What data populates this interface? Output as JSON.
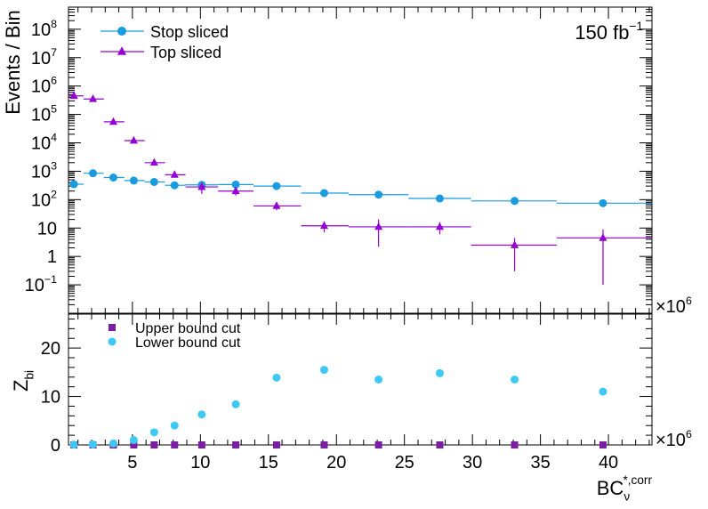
{
  "chart_data": [
    {
      "type": "scatter",
      "ylabel": "Events / Bin",
      "yscale": "log",
      "ylim": [
        0.01,
        600000000
      ],
      "xlim": [
        0.3,
        43.2
      ],
      "x_multiplier": "×10^6",
      "annotation": {
        "text": "150 fb",
        "sup": "−1"
      },
      "legend": "top-left",
      "y_ticks": [
        {
          "value": 0.1,
          "label": "10",
          "sup": "−1"
        },
        {
          "value": 1,
          "label": "1",
          "sup": ""
        },
        {
          "value": 10,
          "label": "10",
          "sup": ""
        },
        {
          "value": 100,
          "label": "10",
          "sup": "2"
        },
        {
          "value": 1000,
          "label": "10",
          "sup": "3"
        },
        {
          "value": 10000,
          "label": "10",
          "sup": "4"
        },
        {
          "value": 100000,
          "label": "10",
          "sup": "5"
        },
        {
          "value": 1000000,
          "label": "10",
          "sup": "6"
        },
        {
          "value": 10000000,
          "label": "10",
          "sup": "7"
        },
        {
          "value": 100000000,
          "label": "10",
          "sup": "8"
        }
      ],
      "series": [
        {
          "name": "Stop sliced",
          "color": "#1a9be0",
          "marker": "circle",
          "x": [
            0.7,
            2.1,
            3.6,
            5.1,
            6.6,
            8.1,
            10.1,
            12.6,
            15.6,
            19.1,
            23.1,
            27.6,
            33.1,
            39.6
          ],
          "xlo": [
            0.3,
            1.4,
            2.9,
            4.4,
            5.9,
            7.4,
            8.9,
            11.3,
            13.9,
            17.4,
            20.9,
            25.3,
            29.9,
            36.2
          ],
          "xhi": [
            1.4,
            2.9,
            4.4,
            5.9,
            7.4,
            8.9,
            11.3,
            13.9,
            17.4,
            20.9,
            25.3,
            29.9,
            36.2,
            43.2
          ],
          "y": [
            350,
            850,
            600,
            470,
            420,
            320,
            330,
            340,
            300,
            170,
            150,
            110,
            90,
            75
          ]
        },
        {
          "name": "Top sliced",
          "color": "#9400d3",
          "marker": "triangle",
          "x": [
            0.7,
            2.1,
            3.6,
            5.1,
            6.6,
            8.1,
            10.1,
            12.6,
            15.6,
            19.1,
            23.1,
            27.6,
            33.1,
            39.6
          ],
          "xlo": [
            0.3,
            1.4,
            2.9,
            4.4,
            5.9,
            7.4,
            8.9,
            11.3,
            13.9,
            17.4,
            20.9,
            25.3,
            29.9,
            36.2
          ],
          "xhi": [
            1.4,
            2.9,
            4.4,
            5.9,
            7.4,
            8.9,
            11.3,
            13.9,
            17.4,
            20.9,
            25.3,
            29.9,
            36.2,
            43.2
          ],
          "y": [
            450000,
            350000,
            55000,
            12000,
            2000,
            750,
            280,
            200,
            60,
            12,
            11,
            11,
            2.5,
            4.5
          ],
          "ylo": [
            380000,
            300000,
            47000,
            10500,
            1700,
            600,
            160,
            140,
            42,
            7,
            2.2,
            6,
            0.3,
            0.1
          ],
          "yhi": [
            520000,
            400000,
            63000,
            13500,
            2300,
            900,
            400,
            260,
            78,
            17,
            20,
            16,
            4.5,
            9
          ]
        }
      ]
    },
    {
      "type": "scatter",
      "ylabel": "Z",
      "ylabel_sub": "bi",
      "xlabel": "BC",
      "xlabel_sub": "ν",
      "xlabel_sup": "*,corr",
      "ylim": [
        0,
        27
      ],
      "xlim": [
        0.3,
        43.2
      ],
      "x_multiplier": "×10^6",
      "x_ticks": [
        5,
        10,
        15,
        20,
        25,
        30,
        35,
        40
      ],
      "y_ticks": [
        0,
        10,
        20
      ],
      "legend": "top-left",
      "series": [
        {
          "name": "Upper bound cut",
          "color": "#7b1fa2",
          "marker": "square",
          "x": [
            0.7,
            2.1,
            3.6,
            5.1,
            6.6,
            8.1,
            10.1,
            12.6,
            15.6,
            19.1,
            23.1,
            27.6,
            33.1,
            39.6
          ],
          "y": [
            0,
            0,
            0,
            0,
            0,
            0,
            0,
            0,
            0,
            0,
            0,
            0,
            0,
            0
          ]
        },
        {
          "name": "Lower bound cut",
          "color": "#3ec8f5",
          "marker": "circle",
          "x": [
            0.7,
            2.1,
            3.6,
            5.1,
            6.6,
            8.1,
            10.1,
            12.6,
            15.6,
            19.1,
            23.1,
            27.6,
            33.1,
            39.6
          ],
          "y": [
            0.05,
            0.1,
            0.3,
            1.0,
            2.6,
            4.0,
            6.3,
            8.4,
            13.9,
            15.5,
            13.5,
            14.8,
            13.5,
            11.0
          ]
        }
      ]
    }
  ]
}
